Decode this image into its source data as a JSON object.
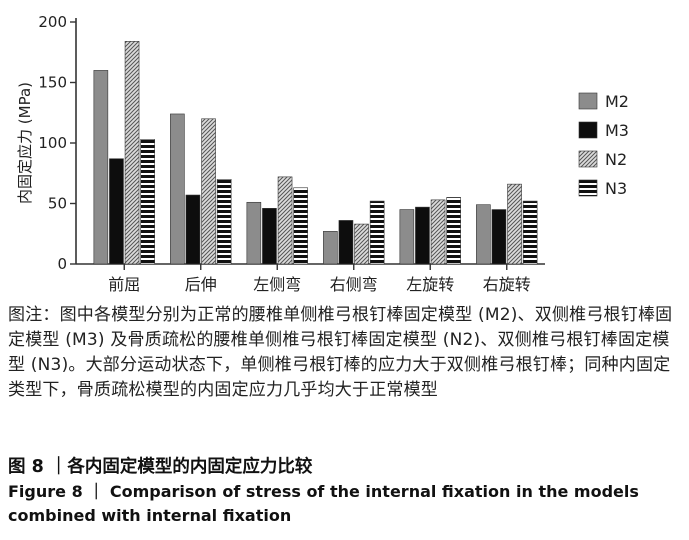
{
  "chart_data": {
    "type": "bar",
    "title": "",
    "xlabel": "",
    "ylabel": "内固定应力 (MPa)",
    "ylim": [
      0,
      200
    ],
    "yticks": [
      0,
      50,
      100,
      150,
      200
    ],
    "categories": [
      "前屈",
      "后伸",
      "左侧弯",
      "右侧弯",
      "左旋转",
      "右旋转"
    ],
    "series": [
      {
        "name": "M2",
        "pattern": "gray",
        "color": "#8a8a8a",
        "values": [
          160,
          124,
          51,
          27,
          45,
          49
        ]
      },
      {
        "name": "M3",
        "pattern": "black",
        "color": "#0d0d0d",
        "values": [
          87,
          57,
          46,
          36,
          47,
          45
        ]
      },
      {
        "name": "N2",
        "pattern": "diagonal-hatch",
        "color": "#7a7a7a",
        "values": [
          184,
          120,
          72,
          33,
          53,
          66
        ]
      },
      {
        "name": "N3",
        "pattern": "horizontal-stripes",
        "color": "#111111",
        "values": [
          103,
          70,
          63,
          52,
          55,
          52
        ]
      }
    ],
    "grid": false,
    "legend": "right"
  },
  "caption": {
    "note": "图注：图中各模型分别为正常的腰椎单侧椎弓根钉棒固定模型 (M2)、双侧椎弓根钉棒固定模型 (M3) 及骨质疏松的腰椎单侧椎弓根钉棒固定模型 (N2)、双侧椎弓根钉棒固定模型 (N3)。大部分运动状态下，单侧椎弓根钉棒的应力大于双侧椎弓根钉棒；同种内固定类型下，骨质疏松模型的内固定应力几乎均大于正常模型",
    "figure_cn": "图 8 ｜各内固定模型的内固定应力比较",
    "figure_en_label": "Figure 8",
    "figure_en_sep": "｜",
    "figure_en_text": "Comparison of stress of the internal fixation in the models combined with internal fixation"
  }
}
